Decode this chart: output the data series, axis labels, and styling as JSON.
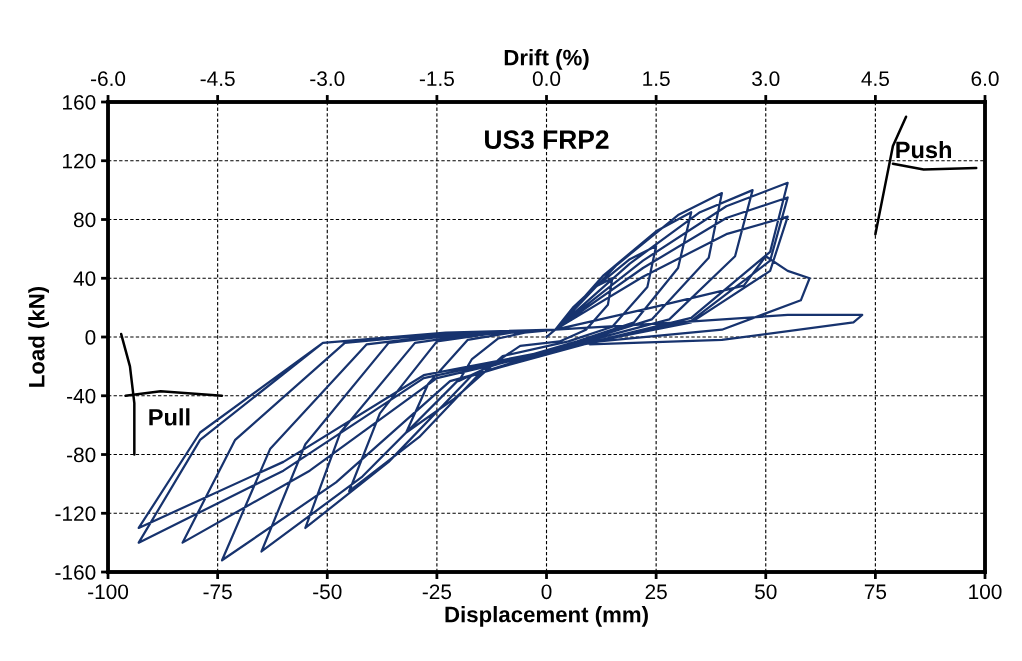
{
  "chart_data": {
    "type": "line",
    "title": "US3 FRP2",
    "xlabel": "Displacement (mm)",
    "ylabel": "Load (kN)",
    "x2label": "Drift (%)",
    "annotations": [
      "Push",
      "Pull"
    ],
    "xlim": [
      -100,
      100
    ],
    "xticks": [
      -100,
      -75,
      -50,
      -25,
      0,
      25,
      50,
      75,
      100
    ],
    "ylim": [
      -160,
      160
    ],
    "yticks": [
      -160,
      -120,
      -80,
      -40,
      0,
      40,
      80,
      120,
      160
    ],
    "x2lim": [
      -6,
      6
    ],
    "x2ticks": [
      {
        "value": -6,
        "label": "-6.0"
      },
      {
        "value": -4.5,
        "label": "-4.5"
      },
      {
        "value": -3,
        "label": "-3.0"
      },
      {
        "value": -1.5,
        "label": "-1.5"
      },
      {
        "value": 0,
        "label": "0.0"
      },
      {
        "value": 1.5,
        "label": "1.5"
      },
      {
        "value": 3,
        "label": "3.0"
      },
      {
        "value": 4.5,
        "label": "4.5"
      },
      {
        "value": 6,
        "label": "6.0"
      }
    ],
    "grid": true,
    "marker": "none",
    "line_style": "solid",
    "series": [
      {
        "color": "#17336e",
        "x": [
          0,
          2,
          6,
          11,
          15,
          14,
          9,
          3,
          -6,
          -13,
          -20,
          -17,
          -11,
          -5,
          2,
          10,
          19,
          25,
          23,
          15,
          5,
          -10,
          -21,
          -32,
          -27,
          -18,
          -8,
          2,
          13,
          25,
          33,
          30,
          20,
          7,
          -14,
          -29,
          -45,
          -38,
          -25,
          -11,
          2,
          16,
          30,
          40,
          37,
          24,
          8,
          -17,
          -36,
          -55,
          -47,
          -30,
          -14,
          2,
          19,
          35,
          47,
          43,
          28,
          9,
          -20,
          -42,
          -65,
          -55,
          -36,
          -16,
          2,
          22,
          41,
          55,
          51,
          33,
          11,
          -22,
          -48,
          -74,
          -63,
          -41,
          -19,
          2,
          22,
          41,
          55,
          51,
          33,
          11,
          -25,
          -54,
          -83,
          -71,
          -46,
          -21,
          2,
          22,
          41,
          55,
          51,
          33,
          11,
          -28,
          -60,
          -93,
          -79,
          -51,
          -23,
          2,
          24,
          45,
          50,
          55,
          60,
          58,
          40,
          12,
          -28,
          -60,
          -93,
          -79,
          -51,
          -23,
          2,
          30,
          55,
          72,
          70,
          40,
          10
        ],
        "values": [
          0,
          5,
          20,
          34,
          40,
          22,
          5,
          -3,
          -6,
          -20,
          -30,
          -15,
          -1,
          3,
          5,
          31,
          53,
          62,
          34,
          7,
          -3,
          -13,
          -42,
          -65,
          -32,
          -2,
          3,
          5,
          42,
          72,
          85,
          47,
          10,
          -3,
          -21,
          -68,
          -105,
          -52,
          -3,
          3,
          5,
          49,
          83,
          98,
          54,
          12,
          -3,
          -26,
          -85,
          -130,
          -65,
          -4,
          3,
          5,
          50,
          85,
          100,
          55,
          12,
          -3,
          -29,
          -95,
          -146,
          -73,
          -4,
          3,
          5,
          52,
          89,
          105,
          58,
          13,
          -3,
          -30,
          -99,
          -152,
          -76,
          -5,
          3,
          5,
          47,
          81,
          95,
          52,
          11,
          -3,
          -28,
          -91,
          -140,
          -70,
          -4,
          3,
          5,
          41,
          70,
          82,
          45,
          10,
          -3,
          -28,
          -91,
          -140,
          -70,
          -4,
          3,
          5,
          20,
          35,
          55,
          45,
          40,
          25,
          5,
          -3,
          -26,
          -85,
          -130,
          -65,
          -4,
          3,
          5,
          10,
          15,
          15,
          10,
          -2,
          -5
        ]
      }
    ]
  }
}
